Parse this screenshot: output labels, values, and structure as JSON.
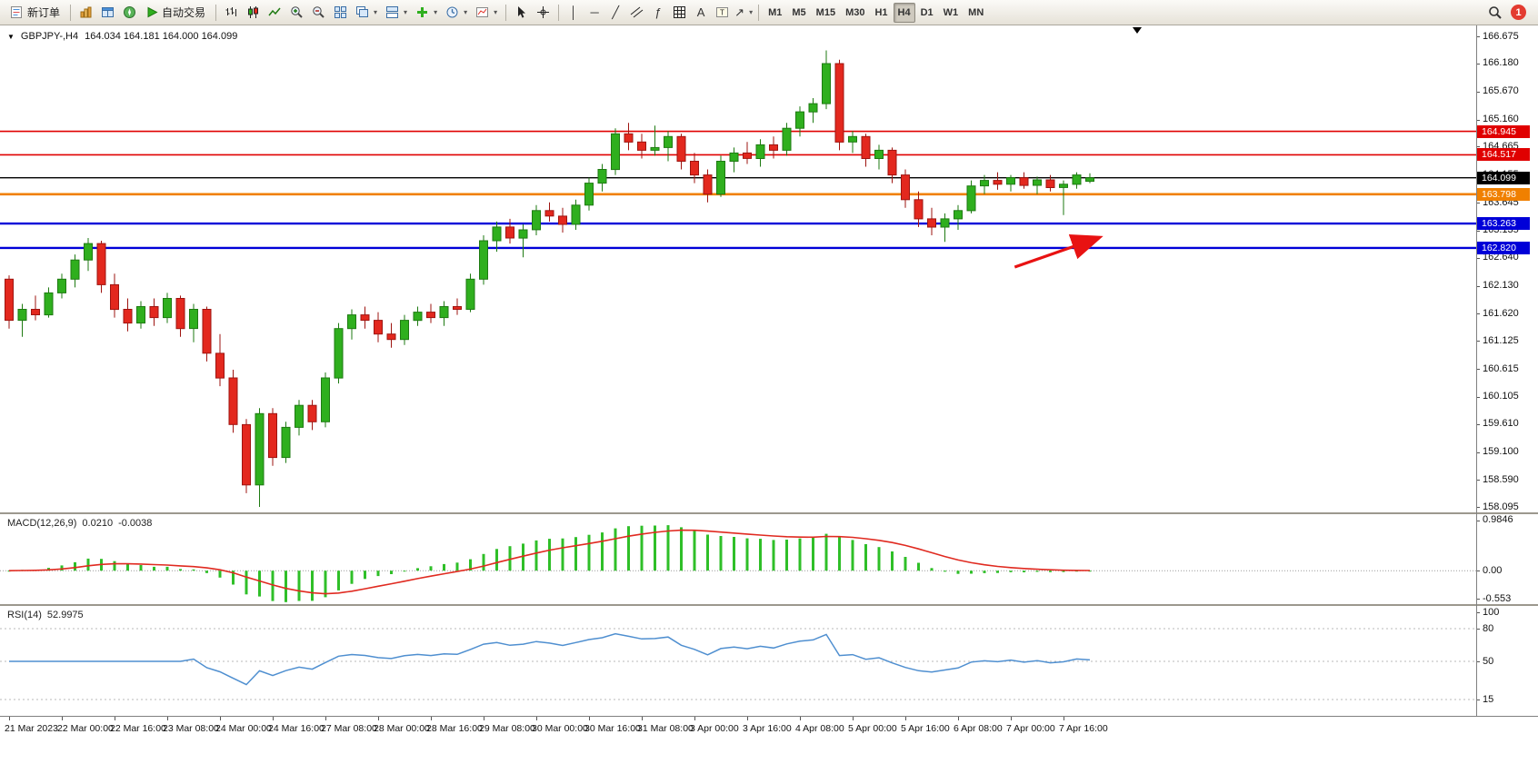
{
  "toolbar": {
    "new_order_label": "新订单",
    "autotrading_label": "自动交易",
    "timeframes": [
      "M1",
      "M5",
      "M15",
      "M30",
      "H1",
      "H4",
      "D1",
      "W1",
      "MN"
    ],
    "active_timeframe": "H4",
    "notification_count": "1"
  },
  "chart": {
    "title": "GBPJPY-,H4",
    "ohlc_readout": "164.034 164.181 164.000 164.099"
  },
  "indicators": {
    "macd": {
      "label": "MACD(12,26,9)",
      "value_main": "0.0210",
      "value_signal": "-0.0038"
    },
    "rsi": {
      "label": "RSI(14)",
      "value": "52.9975"
    }
  },
  "colors": {
    "candle_up": "#2FAF1E",
    "candle_up_border": "#1E7A12",
    "candle_down": "#E3281E",
    "candle_down_border": "#9E1410",
    "macd_histogram": "#2FBF28",
    "macd_signal": "#E02A20",
    "rsi_line": "#4F8FD0",
    "arrow": "#E81212"
  },
  "chart_data": {
    "type": "candlestick",
    "symbol": "GBPJPY-",
    "timeframe": "H4",
    "ylim": [
      158.0,
      166.875
    ],
    "price_axis_labels": [
      "166.675",
      "166.180",
      "165.670",
      "165.160",
      "164.665",
      "164.155",
      "163.645",
      "163.135",
      "162.640",
      "162.130",
      "161.620",
      "161.125",
      "160.615",
      "160.105",
      "159.610",
      "159.100",
      "158.590",
      "158.095"
    ],
    "hlines": [
      {
        "price": 164.945,
        "color": "#E00000",
        "w": 1.6,
        "badge": "164.945",
        "label": "resistance-164945"
      },
      {
        "price": 164.517,
        "color": "#E00000",
        "w": 1.6,
        "badge": "164.517",
        "label": "resistance-164517"
      },
      {
        "price": 164.099,
        "color": "#000000",
        "w": 1.4,
        "badge": "164.099",
        "label": "bid-price"
      },
      {
        "price": 163.798,
        "color": "#F08000",
        "w": 2.6,
        "badge": "163.798",
        "label": "pivot-163798"
      },
      {
        "price": 163.263,
        "color": "#0000D8",
        "w": 2.4,
        "badge": "163.263",
        "label": "support-163263"
      },
      {
        "price": 162.82,
        "color": "#0000D8",
        "w": 2.4,
        "badge": "162.820",
        "label": "support-162820"
      }
    ],
    "arrow": {
      "from_index": 76.3,
      "from_price": 162.47,
      "to_index": 82.6,
      "to_price": 163.0
    },
    "time_label_step": 4,
    "time_labels": [
      "21 Mar 2023",
      "22 Mar 00:00",
      "22 Mar 16:00",
      "23 Mar 08:00",
      "24 Mar 00:00",
      "24 Mar 16:00",
      "27 Mar 08:00",
      "28 Mar 00:00",
      "28 Mar 16:00",
      "29 Mar 08:00",
      "30 Mar 00:00",
      "30 Mar 16:00",
      "31 Mar 08:00",
      "3 Apr 00:00",
      "3 Apr 16:00",
      "4 Apr 08:00",
      "5 Apr 00:00",
      "5 Apr 16:00",
      "6 Apr 08:00",
      "7 Apr 00:00",
      "7 Apr 16:00"
    ],
    "ohlc": [
      [
        162.25,
        162.32,
        161.35,
        161.5
      ],
      [
        161.5,
        161.8,
        161.2,
        161.7
      ],
      [
        161.7,
        161.95,
        161.5,
        161.6
      ],
      [
        161.6,
        162.1,
        161.55,
        162.0
      ],
      [
        162.0,
        162.35,
        161.9,
        162.25
      ],
      [
        162.25,
        162.7,
        162.1,
        162.6
      ],
      [
        162.6,
        163.0,
        162.4,
        162.9
      ],
      [
        162.9,
        162.95,
        162.0,
        162.15
      ],
      [
        162.15,
        162.35,
        161.55,
        161.7
      ],
      [
        161.7,
        161.9,
        161.3,
        161.45
      ],
      [
        161.45,
        161.85,
        161.35,
        161.75
      ],
      [
        161.75,
        161.9,
        161.4,
        161.55
      ],
      [
        161.55,
        162.0,
        161.45,
        161.9
      ],
      [
        161.9,
        161.95,
        161.2,
        161.35
      ],
      [
        161.35,
        161.8,
        161.1,
        161.7
      ],
      [
        161.7,
        161.75,
        160.75,
        160.9
      ],
      [
        160.9,
        161.25,
        160.3,
        160.45
      ],
      [
        160.45,
        160.6,
        159.45,
        159.6
      ],
      [
        159.6,
        159.7,
        158.35,
        158.5
      ],
      [
        158.5,
        159.9,
        158.1,
        159.8
      ],
      [
        159.8,
        159.9,
        158.85,
        159.0
      ],
      [
        159.0,
        159.65,
        158.9,
        159.55
      ],
      [
        159.55,
        160.05,
        159.4,
        159.95
      ],
      [
        159.95,
        160.05,
        159.5,
        159.65
      ],
      [
        159.65,
        160.55,
        159.55,
        160.45
      ],
      [
        160.45,
        161.45,
        160.35,
        161.35
      ],
      [
        161.35,
        161.7,
        161.15,
        161.6
      ],
      [
        161.6,
        161.75,
        161.35,
        161.5
      ],
      [
        161.5,
        161.65,
        161.1,
        161.25
      ],
      [
        161.25,
        161.45,
        161.0,
        161.15
      ],
      [
        161.15,
        161.6,
        161.05,
        161.5
      ],
      [
        161.5,
        161.75,
        161.4,
        161.65
      ],
      [
        161.65,
        161.8,
        161.45,
        161.55
      ],
      [
        161.55,
        161.85,
        161.4,
        161.75
      ],
      [
        161.75,
        161.9,
        161.6,
        161.7
      ],
      [
        161.7,
        162.35,
        161.65,
        162.25
      ],
      [
        162.25,
        163.05,
        162.15,
        162.95
      ],
      [
        162.95,
        163.3,
        162.75,
        163.2
      ],
      [
        163.2,
        163.35,
        162.9,
        163.0
      ],
      [
        163.0,
        163.25,
        162.65,
        163.15
      ],
      [
        163.15,
        163.6,
        163.05,
        163.5
      ],
      [
        163.5,
        163.65,
        163.3,
        163.4
      ],
      [
        163.4,
        163.55,
        163.1,
        163.25
      ],
      [
        163.25,
        163.7,
        163.15,
        163.6
      ],
      [
        163.6,
        164.1,
        163.5,
        164.0
      ],
      [
        164.0,
        164.35,
        163.85,
        164.25
      ],
      [
        164.25,
        165.0,
        164.15,
        164.9
      ],
      [
        164.9,
        165.1,
        164.6,
        164.75
      ],
      [
        164.75,
        164.9,
        164.45,
        164.6
      ],
      [
        164.6,
        165.05,
        164.5,
        164.65
      ],
      [
        164.65,
        164.95,
        164.4,
        164.85
      ],
      [
        164.85,
        164.9,
        164.25,
        164.4
      ],
      [
        164.4,
        164.55,
        164.0,
        164.15
      ],
      [
        164.15,
        164.25,
        163.65,
        163.8
      ],
      [
        163.8,
        164.5,
        163.75,
        164.4
      ],
      [
        164.4,
        164.65,
        164.2,
        164.55
      ],
      [
        164.55,
        164.75,
        164.35,
        164.45
      ],
      [
        164.45,
        164.8,
        164.3,
        164.7
      ],
      [
        164.7,
        164.85,
        164.45,
        164.6
      ],
      [
        164.6,
        165.1,
        164.5,
        165.0
      ],
      [
        165.0,
        165.4,
        164.85,
        165.3
      ],
      [
        165.3,
        165.55,
        165.1,
        165.45
      ],
      [
        165.45,
        166.42,
        165.35,
        166.18
      ],
      [
        166.18,
        166.25,
        164.6,
        164.75
      ],
      [
        164.75,
        164.95,
        164.55,
        164.85
      ],
      [
        164.85,
        164.9,
        164.3,
        164.45
      ],
      [
        164.45,
        164.7,
        164.25,
        164.6
      ],
      [
        164.6,
        164.65,
        164.0,
        164.15
      ],
      [
        164.15,
        164.25,
        163.55,
        163.7
      ],
      [
        163.7,
        163.85,
        163.2,
        163.35
      ],
      [
        163.35,
        163.55,
        163.05,
        163.2
      ],
      [
        163.2,
        163.45,
        162.93,
        163.35
      ],
      [
        163.35,
        163.6,
        163.15,
        163.5
      ],
      [
        163.5,
        164.05,
        163.45,
        163.95
      ],
      [
        163.95,
        164.15,
        163.8,
        164.05
      ],
      [
        164.05,
        164.2,
        163.88,
        163.98
      ],
      [
        163.98,
        164.15,
        163.85,
        164.1
      ],
      [
        164.1,
        164.2,
        163.9,
        163.96
      ],
      [
        163.96,
        164.12,
        163.8,
        164.06
      ],
      [
        164.06,
        164.15,
        163.85,
        163.92
      ],
      [
        163.92,
        164.05,
        163.42,
        163.98
      ],
      [
        163.98,
        164.2,
        163.9,
        164.15
      ],
      [
        164.034,
        164.181,
        164.0,
        164.099
      ]
    ],
    "macd": {
      "fast": 12,
      "slow": 26,
      "signal": 9,
      "axis_labels": [
        {
          "v": 0.9846,
          "t": "0.9846"
        },
        {
          "v": 0,
          "t": "0.00"
        },
        {
          "v": -0.553,
          "t": "-0.553"
        }
      ]
    },
    "rsi": {
      "period": 14,
      "levels": [
        80,
        50,
        15
      ],
      "axis_labels": [
        {
          "v": 100,
          "t": "100"
        },
        {
          "v": 80,
          "t": "80"
        },
        {
          "v": 50,
          "t": "50"
        },
        {
          "v": 15,
          "t": "15"
        }
      ]
    }
  }
}
